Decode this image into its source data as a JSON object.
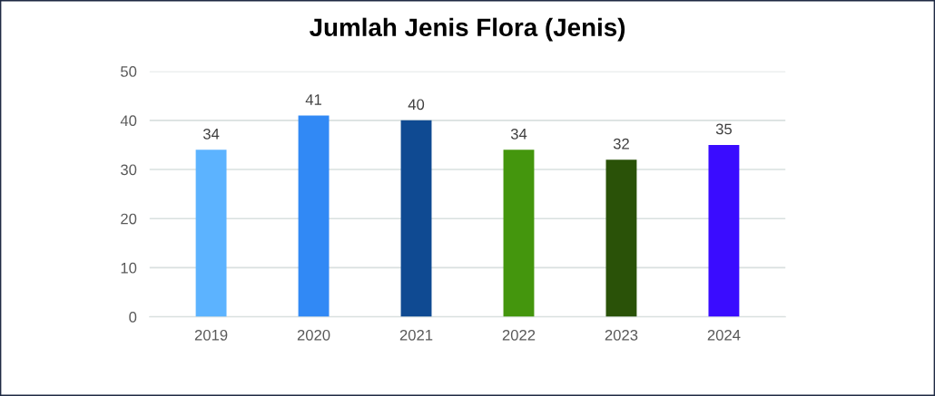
{
  "chart_data": {
    "type": "bar",
    "title": "Jumlah Jenis Flora (Jenis)",
    "categories": [
      "2019",
      "2020",
      "2021",
      "2022",
      "2023",
      "2024"
    ],
    "values": [
      34,
      41,
      40,
      34,
      32,
      35
    ],
    "colors": [
      "#5cb3ff",
      "#3189f5",
      "#0f4a92",
      "#44960d",
      "#2a5208",
      "#3a0cff"
    ],
    "ylim": [
      0,
      50
    ],
    "yticks": [
      0,
      10,
      20,
      30,
      40,
      50
    ],
    "grid": "y",
    "data_labels": true
  }
}
